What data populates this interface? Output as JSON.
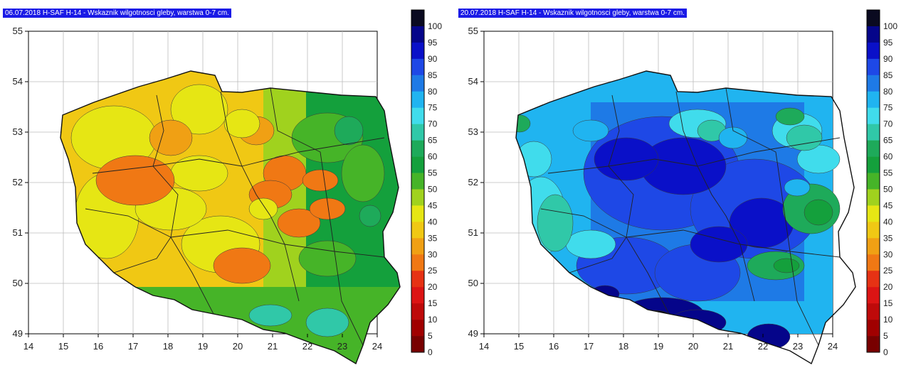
{
  "maps": [
    {
      "title": "06.07.2018 H-SAF H-14 - Wskaznik wilgotnosci gleby, warstwa 0-7 cm.",
      "scheme": "dry"
    },
    {
      "title": "20.07.2018 H-SAF H-14 - Wskaznik wilgotnosci gleby, warstwa 0-7 cm.",
      "scheme": "wet"
    }
  ],
  "axes": {
    "x_ticks": [
      "14",
      "15",
      "16",
      "17",
      "18",
      "19",
      "20",
      "21",
      "22",
      "23",
      "24"
    ],
    "y_ticks": [
      "55",
      "54",
      "53",
      "52",
      "51",
      "50",
      "49"
    ],
    "lon_range": [
      14,
      24
    ],
    "lat_range": [
      49,
      55
    ]
  },
  "colorbar": {
    "labels": [
      "100",
      "95",
      "90",
      "85",
      "80",
      "75",
      "70",
      "65",
      "60",
      "55",
      "50",
      "45",
      "40",
      "35",
      "30",
      "25",
      "20",
      "15",
      "10",
      "5",
      "0"
    ],
    "colors": [
      "#0a0a20",
      "#05058a",
      "#0a10c8",
      "#1e48e6",
      "#1e7ae6",
      "#20b4f0",
      "#40dcec",
      "#30c8a8",
      "#1eaa5a",
      "#14a03c",
      "#46b428",
      "#a0d21e",
      "#e6e614",
      "#f0c814",
      "#f0a014",
      "#f07814",
      "#e63214",
      "#dc1414",
      "#be0a0a",
      "#a00000",
      "#780000"
    ]
  }
}
